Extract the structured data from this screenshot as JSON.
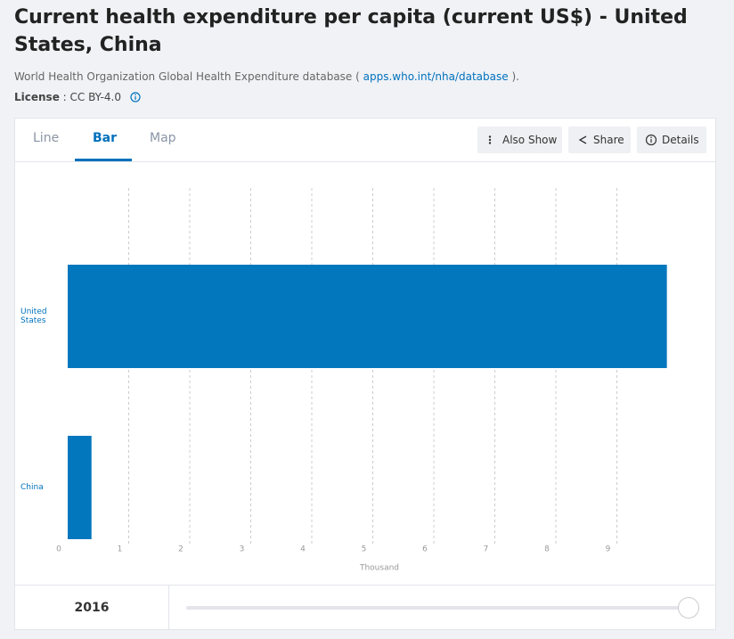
{
  "header": {
    "title": "Current health expenditure per capita (current US$) - United States, China",
    "source_prefix": "World Health Organization Global Health Expenditure database (",
    "source_link": "apps.who.int/nha/database",
    "source_suffix": ").",
    "license_label": "License",
    "license_text": ": CC BY-4.0"
  },
  "tabs": [
    "Line",
    "Bar",
    "Map"
  ],
  "buttons": [
    "Also Show",
    "Share",
    "Details"
  ],
  "chart_data": {
    "type": "bar",
    "orientation": "horizontal",
    "categories": [
      "United States",
      "China"
    ],
    "values": [
      9.82,
      0.39
    ],
    "color": "#0277bd",
    "xlabel": "Thousand",
    "xlim": [
      0,
      10
    ],
    "xticks": [
      0,
      1,
      2,
      3,
      4,
      5,
      6,
      7,
      8,
      9
    ],
    "grid": true
  },
  "slider": {
    "year": "2016"
  }
}
